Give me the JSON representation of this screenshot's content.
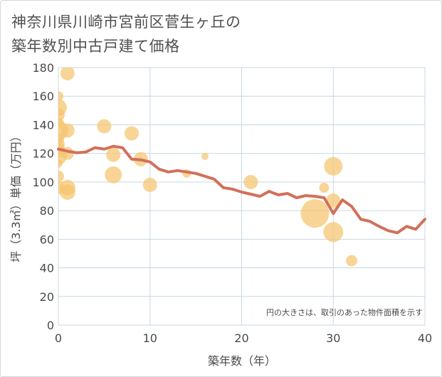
{
  "title": {
    "line1": "神奈川県川崎市宮前区菅生ヶ丘の",
    "line2": "築年数別中古戸建て価格"
  },
  "chart_data": {
    "type": "scatter+line",
    "xlabel": "築年数（年）",
    "ylabel": "坪（3.3㎡）単価（万円）",
    "xlim": [
      0,
      40
    ],
    "ylim": [
      0,
      180
    ],
    "xticks": [
      "0",
      "10",
      "20",
      "30",
      "40"
    ],
    "yticks": [
      "0",
      "20",
      "40",
      "60",
      "80",
      "100",
      "120",
      "140",
      "160",
      "180"
    ],
    "note": "円の大きさは、取引のあった物件面積を示す",
    "colors": {
      "bubble": "#f5c56e",
      "line": "#d2705a",
      "grid": "#c9d7e3"
    },
    "bubbles": [
      {
        "x": 0,
        "y": 160,
        "s": 7
      },
      {
        "x": 0,
        "y": 152,
        "s": 12
      },
      {
        "x": 0,
        "y": 147,
        "s": 9
      },
      {
        "x": 0,
        "y": 141,
        "s": 8
      },
      {
        "x": 0,
        "y": 136,
        "s": 14
      },
      {
        "x": 0,
        "y": 130,
        "s": 8
      },
      {
        "x": 0,
        "y": 126,
        "s": 9
      },
      {
        "x": 0,
        "y": 122,
        "s": 10
      },
      {
        "x": 0,
        "y": 118,
        "s": 12
      },
      {
        "x": 0,
        "y": 113,
        "s": 6
      },
      {
        "x": 0,
        "y": 104,
        "s": 8
      },
      {
        "x": 0,
        "y": 96,
        "s": 9
      },
      {
        "x": 1,
        "y": 176,
        "s": 10
      },
      {
        "x": 1,
        "y": 136,
        "s": 10
      },
      {
        "x": 1,
        "y": 120,
        "s": 9
      },
      {
        "x": 1,
        "y": 96,
        "s": 11
      },
      {
        "x": 1,
        "y": 93,
        "s": 11
      },
      {
        "x": 5,
        "y": 139,
        "s": 10
      },
      {
        "x": 6,
        "y": 119,
        "s": 10
      },
      {
        "x": 6,
        "y": 105,
        "s": 12
      },
      {
        "x": 8,
        "y": 134,
        "s": 10
      },
      {
        "x": 9,
        "y": 116,
        "s": 10
      },
      {
        "x": 10,
        "y": 98,
        "s": 10
      },
      {
        "x": 14,
        "y": 106,
        "s": 6
      },
      {
        "x": 16,
        "y": 118,
        "s": 5
      },
      {
        "x": 21,
        "y": 100,
        "s": 10
      },
      {
        "x": 28,
        "y": 78,
        "s": 20
      },
      {
        "x": 29,
        "y": 96,
        "s": 7
      },
      {
        "x": 30,
        "y": 111,
        "s": 13
      },
      {
        "x": 30,
        "y": 87,
        "s": 10
      },
      {
        "x": 30,
        "y": 65,
        "s": 14
      },
      {
        "x": 32,
        "y": 45,
        "s": 8
      }
    ],
    "line": [
      {
        "x": 0,
        "y": 123
      },
      {
        "x": 1,
        "y": 121.5
      },
      {
        "x": 2,
        "y": 120.5
      },
      {
        "x": 3,
        "y": 121
      },
      {
        "x": 4,
        "y": 124
      },
      {
        "x": 5,
        "y": 123
      },
      {
        "x": 6,
        "y": 125
      },
      {
        "x": 7,
        "y": 124
      },
      {
        "x": 8,
        "y": 116
      },
      {
        "x": 9,
        "y": 115.5
      },
      {
        "x": 10,
        "y": 114
      },
      {
        "x": 11,
        "y": 109
      },
      {
        "x": 12,
        "y": 107
      },
      {
        "x": 13,
        "y": 108
      },
      {
        "x": 14,
        "y": 107
      },
      {
        "x": 15,
        "y": 106
      },
      {
        "x": 16,
        "y": 104
      },
      {
        "x": 17,
        "y": 102
      },
      {
        "x": 18,
        "y": 96
      },
      {
        "x": 19,
        "y": 95
      },
      {
        "x": 20,
        "y": 93
      },
      {
        "x": 21,
        "y": 91.5
      },
      {
        "x": 22,
        "y": 90
      },
      {
        "x": 23,
        "y": 93.5
      },
      {
        "x": 24,
        "y": 91
      },
      {
        "x": 25,
        "y": 92
      },
      {
        "x": 26,
        "y": 89
      },
      {
        "x": 27,
        "y": 90.5
      },
      {
        "x": 28,
        "y": 90
      },
      {
        "x": 29,
        "y": 89
      },
      {
        "x": 30,
        "y": 78
      },
      {
        "x": 31,
        "y": 87.5
      },
      {
        "x": 32,
        "y": 83
      },
      {
        "x": 33,
        "y": 74
      },
      {
        "x": 34,
        "y": 72.5
      },
      {
        "x": 35,
        "y": 69
      },
      {
        "x": 36,
        "y": 66
      },
      {
        "x": 37,
        "y": 64.5
      },
      {
        "x": 38,
        "y": 69
      },
      {
        "x": 39,
        "y": 67
      },
      {
        "x": 40,
        "y": 74
      }
    ]
  }
}
